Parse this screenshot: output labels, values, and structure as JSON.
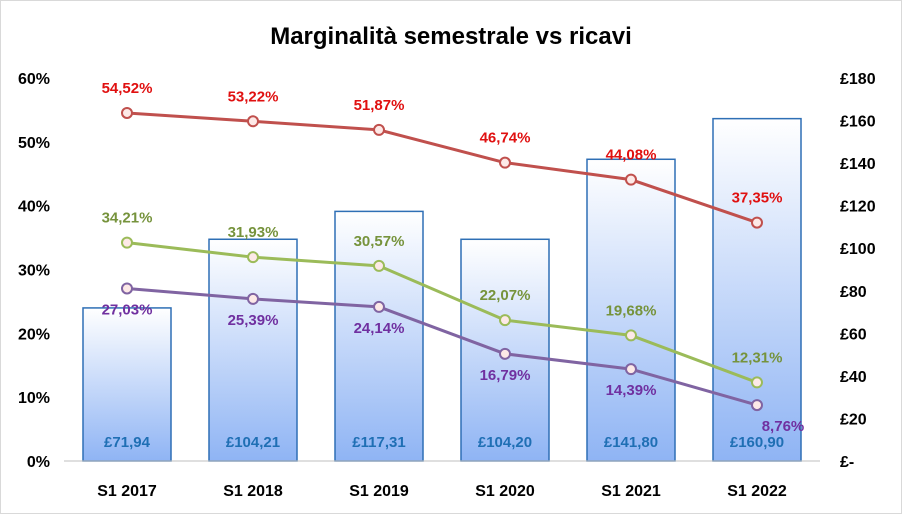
{
  "chart_data": {
    "type": "bar+line",
    "title": "Marginalità semestrale vs ricavi",
    "categories": [
      "S1 2017",
      "S1 2018",
      "S1 2019",
      "S1 2020",
      "S1 2021",
      "S1 2022"
    ],
    "bars": {
      "axis": "right",
      "values": [
        71.94,
        104.21,
        117.31,
        104.2,
        141.8,
        160.9
      ],
      "labels": [
        "£71,94",
        "£104,21",
        "£117,31",
        "£104,20",
        "£141,80",
        "£160,90"
      ],
      "color": "#8fb4f4"
    },
    "series": [
      {
        "axis": "left",
        "values": [
          54.52,
          53.22,
          51.87,
          46.74,
          44.08,
          37.35
        ],
        "labels": [
          "54,52%",
          "53,22%",
          "51,87%",
          "46,74%",
          "44,08%",
          "37,35%"
        ],
        "color": "#c0504d",
        "label_color": "#e01010"
      },
      {
        "axis": "left",
        "values": [
          34.21,
          31.93,
          30.57,
          22.07,
          19.68,
          12.31
        ],
        "labels": [
          "34,21%",
          "31,93%",
          "30,57%",
          "22,07%",
          "19,68%",
          "12,31%"
        ],
        "color": "#9bbb59",
        "label_color": "#76933c"
      },
      {
        "axis": "left",
        "values": [
          27.03,
          25.39,
          24.14,
          16.79,
          14.39,
          8.76
        ],
        "labels": [
          "27,03%",
          "25,39%",
          "24,14%",
          "16,79%",
          "14,39%",
          "8,76%"
        ],
        "color": "#8064a2",
        "label_color": "#7030a0"
      }
    ],
    "y_left": {
      "ylim": [
        0,
        60
      ],
      "ticks": [
        "0%",
        "10%",
        "20%",
        "30%",
        "40%",
        "50%",
        "60%"
      ]
    },
    "y_right": {
      "ylim": [
        0,
        180
      ],
      "ticks": [
        "£-",
        "£20",
        "£40",
        "£60",
        "£80",
        "£100",
        "£120",
        "£140",
        "£160",
        "£180"
      ]
    },
    "grid": false,
    "legend": "none"
  }
}
